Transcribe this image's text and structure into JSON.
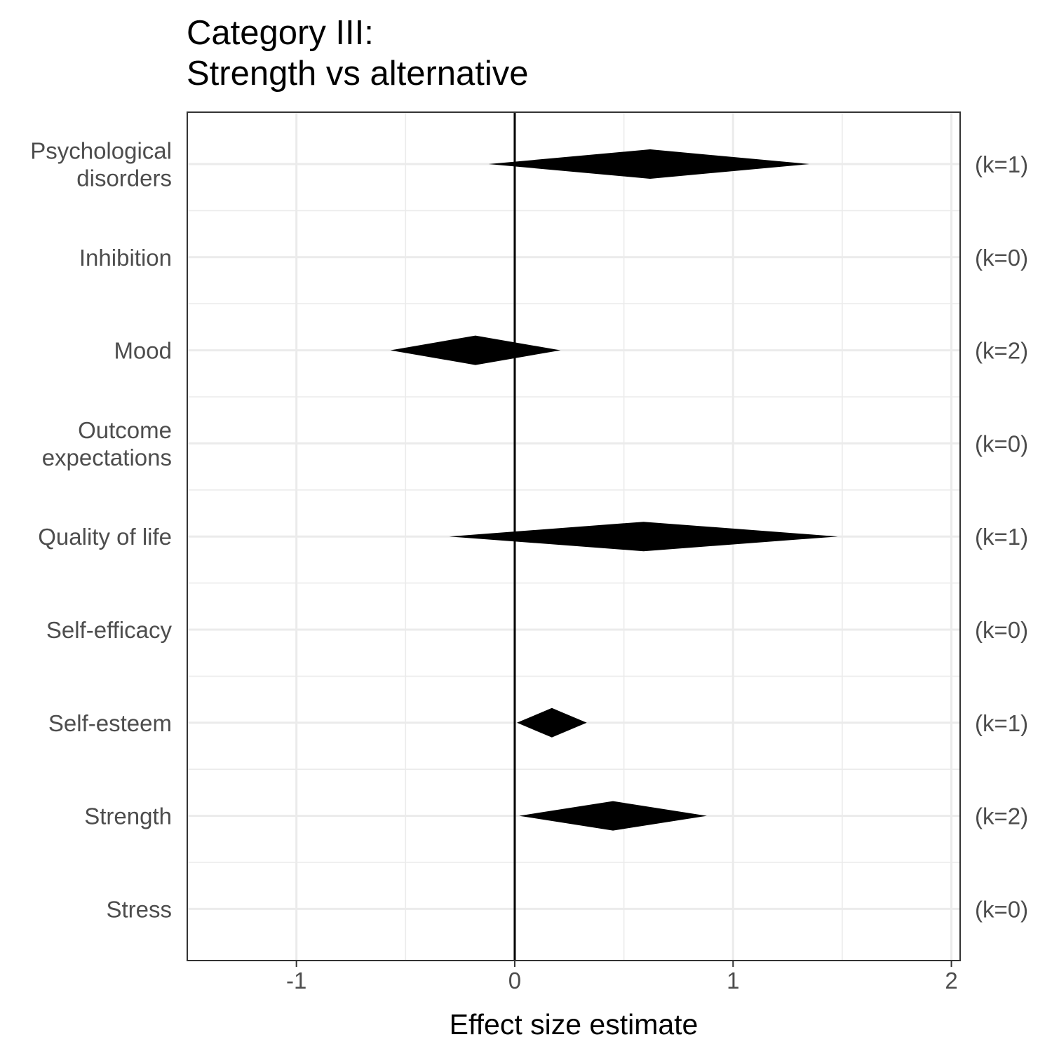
{
  "chart_data": {
    "type": "forest",
    "title": [
      "Category III:",
      "Strength vs alternative"
    ],
    "xlabel": "Effect size estimate",
    "xlim": [
      -1.5,
      2.04
    ],
    "xticks": [
      "-1",
      "0",
      "1",
      "2"
    ],
    "reference_line": 0,
    "grid": true,
    "categories": [
      {
        "label": [
          "Psychological",
          "disorders"
        ],
        "k": "(k=1)",
        "estimate": 0.62,
        "lower": -0.12,
        "upper": 1.35
      },
      {
        "label": [
          "Inhibition"
        ],
        "k": "(k=0)",
        "estimate": null,
        "lower": null,
        "upper": null
      },
      {
        "label": [
          "Mood"
        ],
        "k": "(k=2)",
        "estimate": -0.18,
        "lower": -0.57,
        "upper": 0.21
      },
      {
        "label": [
          "Outcome",
          "expectations"
        ],
        "k": "(k=0)",
        "estimate": null,
        "lower": null,
        "upper": null
      },
      {
        "label": [
          "Quality of life"
        ],
        "k": "(k=1)",
        "estimate": 0.59,
        "lower": -0.3,
        "upper": 1.48
      },
      {
        "label": [
          "Self-efficacy"
        ],
        "k": "(k=0)",
        "estimate": null,
        "lower": null,
        "upper": null
      },
      {
        "label": [
          "Self-esteem"
        ],
        "k": "(k=1)",
        "estimate": 0.17,
        "lower": 0.01,
        "upper": 0.33
      },
      {
        "label": [
          "Strength"
        ],
        "k": "(k=2)",
        "estimate": 0.45,
        "lower": 0.02,
        "upper": 0.88
      },
      {
        "label": [
          "Stress"
        ],
        "k": "(k=0)",
        "estimate": null,
        "lower": null,
        "upper": null
      }
    ]
  }
}
